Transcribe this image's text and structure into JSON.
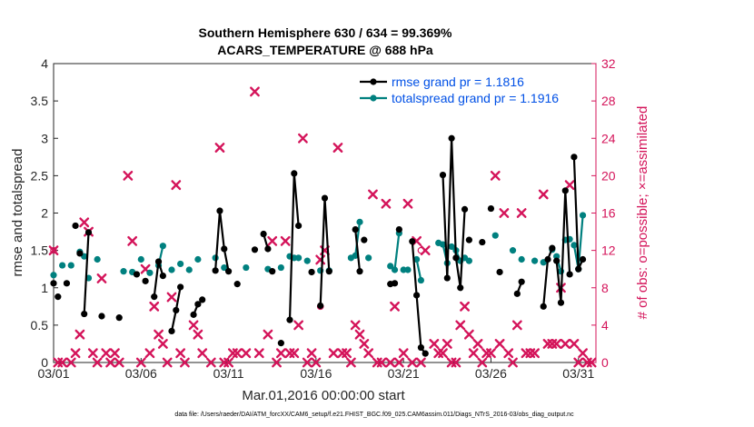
{
  "chart_data": {
    "type": "line",
    "title": "Southern Hemisphere 630 / 634 = 99.369%",
    "subtitle": "ACARS_TEMPERATURE @ 688 hPa",
    "xlabel": "Mar.01,2016 00:00:00 start",
    "ylabel": "rmse and totalspread",
    "ylabel_right": "# of obs: o=possible; ×=assimilated",
    "footer": "data file: /Users/raeder/DAI/ATM_forcXX/CAM6_setup/f.e21.FHIST_BGC.f09_025.CAM6assim.011/Diags_NTrS_2016-03/obs_diag_output.nc",
    "xlim": [
      1,
      32
    ],
    "ylim": [
      0,
      4
    ],
    "ylim_right": [
      0,
      32
    ],
    "x_ticks": [
      {
        "value": 1,
        "label": "03/01"
      },
      {
        "value": 6,
        "label": "03/06"
      },
      {
        "value": 11,
        "label": "03/11"
      },
      {
        "value": 16,
        "label": "03/16"
      },
      {
        "value": 21,
        "label": "03/21"
      },
      {
        "value": 26,
        "label": "03/26"
      },
      {
        "value": 31,
        "label": "03/31"
      }
    ],
    "y_ticks": [
      "0",
      "0.5",
      "1",
      "1.5",
      "2",
      "2.5",
      "3",
      "3.5",
      "4"
    ],
    "y_ticks_right": [
      "0",
      "4",
      "8",
      "12",
      "16",
      "20",
      "24",
      "28",
      "32"
    ],
    "legend": [
      {
        "label": "rmse grand pr = 1.1816",
        "color": "#000000",
        "marker": "dot"
      },
      {
        "label": "totalspread grand pr = 1.1916",
        "color": "#00807f",
        "marker": "dot"
      }
    ],
    "colors": {
      "rmse": "#000000",
      "spread": "#00807f",
      "obs": "#d4145a"
    },
    "series": [
      {
        "name": "rmse",
        "segments": [
          [
            [
              1.0,
              1.06
            ]
          ],
          [
            [
              1.25,
              0.88
            ]
          ],
          [
            [
              1.75,
              1.06
            ]
          ],
          [
            [
              2.25,
              1.83
            ]
          ],
          [
            [
              2.5,
              1.46
            ]
          ],
          [
            [
              2.75,
              0.65
            ],
            [
              3.0,
              1.74
            ]
          ],
          [
            [
              3.75,
              0.62
            ]
          ],
          [
            [
              4.75,
              0.6
            ]
          ],
          [
            [
              5.75,
              1.18
            ]
          ],
          [
            [
              6.25,
              1.09
            ]
          ],
          [
            [
              6.75,
              0.88
            ],
            [
              7.0,
              1.35
            ],
            [
              7.25,
              1.16
            ]
          ],
          [
            [
              7.75,
              0.42
            ],
            [
              8.0,
              0.7
            ],
            [
              8.25,
              1.01
            ]
          ],
          [
            [
              9.0,
              0.64
            ],
            [
              9.25,
              0.78
            ]
          ],
          [
            [
              9.5,
              0.84
            ]
          ],
          [
            [
              10.25,
              1.23
            ],
            [
              10.5,
              2.03
            ],
            [
              10.75,
              1.52
            ],
            [
              11.0,
              1.22
            ]
          ],
          [
            [
              11.5,
              1.05
            ]
          ],
          [
            [
              12.5,
              1.51
            ]
          ],
          [
            [
              13.0,
              1.72
            ],
            [
              13.25,
              1.52
            ]
          ],
          [
            [
              13.5,
              1.22
            ]
          ],
          [
            [
              14.0,
              0.26
            ]
          ],
          [
            [
              14.5,
              0.57
            ],
            [
              14.75,
              2.53
            ],
            [
              15.0,
              1.83
            ]
          ],
          [
            [
              15.75,
              1.21
            ]
          ],
          [
            [
              16.25,
              0.76
            ],
            [
              16.5,
              2.2
            ],
            [
              16.75,
              1.22
            ]
          ],
          [
            [
              18.25,
              1.78
            ],
            [
              18.5,
              1.22
            ]
          ],
          [
            [
              18.75,
              1.64
            ]
          ],
          [
            [
              20.25,
              1.05
            ],
            [
              20.5,
              1.06
            ]
          ],
          [
            [
              20.75,
              1.78
            ]
          ],
          [
            [
              21.5,
              1.62
            ],
            [
              21.75,
              0.9
            ],
            [
              22.0,
              0.2
            ],
            [
              22.25,
              0.12
            ]
          ],
          [
            [
              23.25,
              2.51
            ],
            [
              23.5,
              1.13
            ],
            [
              23.75,
              3.0
            ],
            [
              24.0,
              1.4
            ],
            [
              24.25,
              1.0
            ],
            [
              24.5,
              2.05
            ]
          ],
          [
            [
              24.75,
              1.64
            ]
          ],
          [
            [
              25.5,
              1.61
            ]
          ],
          [
            [
              26.0,
              2.06
            ]
          ],
          [
            [
              26.5,
              1.21
            ]
          ],
          [
            [
              27.5,
              0.92
            ],
            [
              27.75,
              1.08
            ]
          ],
          [
            [
              29.0,
              0.75
            ],
            [
              29.25,
              1.38
            ],
            [
              29.5,
              1.53
            ]
          ],
          [
            [
              29.75,
              1.36
            ],
            [
              30.0,
              0.8
            ],
            [
              30.25,
              2.3
            ],
            [
              30.5,
              1.18
            ]
          ],
          [
            [
              30.75,
              2.75
            ],
            [
              31.0,
              1.25
            ],
            [
              31.25,
              1.38
            ]
          ]
        ]
      },
      {
        "name": "totalspread",
        "segments": [
          [
            [
              1.0,
              1.17
            ]
          ],
          [
            [
              1.5,
              1.3
            ]
          ],
          [
            [
              2.0,
              1.3
            ]
          ],
          [
            [
              2.5,
              1.48
            ]
          ],
          [
            [
              2.75,
              1.42
            ]
          ],
          [
            [
              3.0,
              1.13
            ]
          ],
          [
            [
              3.5,
              1.38
            ]
          ],
          [
            [
              5.0,
              1.22
            ]
          ],
          [
            [
              5.5,
              1.21
            ]
          ],
          [
            [
              6.0,
              1.38
            ]
          ],
          [
            [
              6.5,
              1.2
            ]
          ],
          [
            [
              7.0,
              1.3
            ],
            [
              7.25,
              1.56
            ]
          ],
          [
            [
              7.75,
              1.24
            ]
          ],
          [
            [
              8.25,
              1.32
            ]
          ],
          [
            [
              8.75,
              1.24
            ]
          ],
          [
            [
              9.25,
              1.38
            ]
          ],
          [
            [
              10.25,
              1.4
            ]
          ],
          [
            [
              10.75,
              1.27
            ]
          ],
          [
            [
              12.0,
              1.27
            ]
          ],
          [
            [
              13.25,
              1.25
            ]
          ],
          [
            [
              14.0,
              1.27
            ]
          ],
          [
            [
              14.5,
              1.42
            ],
            [
              14.75,
              1.4
            ],
            [
              15.0,
              1.4
            ]
          ],
          [
            [
              15.5,
              1.36
            ]
          ],
          [
            [
              16.25,
              1.23
            ]
          ],
          [
            [
              16.75,
              1.23
            ]
          ],
          [
            [
              18.0,
              1.4
            ]
          ],
          [
            [
              18.25,
              1.43
            ],
            [
              18.5,
              1.88
            ]
          ],
          [
            [
              19.0,
              1.4
            ]
          ],
          [
            [
              20.25,
              1.29
            ]
          ],
          [
            [
              20.5,
              1.24
            ],
            [
              20.75,
              1.73
            ]
          ],
          [
            [
              21.0,
              1.24
            ],
            [
              21.25,
              1.24
            ]
          ],
          [
            [
              21.75,
              1.38
            ],
            [
              22.0,
              1.1
            ]
          ],
          [
            [
              23.0,
              1.6
            ]
          ],
          [
            [
              23.25,
              1.58
            ],
            [
              23.5,
              1.33
            ]
          ],
          [
            [
              23.75,
              1.55
            ],
            [
              24.0,
              1.5
            ],
            [
              24.25,
              1.36
            ]
          ],
          [
            [
              24.5,
              1.4
            ],
            [
              24.75,
              1.36
            ]
          ],
          [
            [
              26.25,
              1.7
            ]
          ],
          [
            [
              27.25,
              1.5
            ]
          ],
          [
            [
              27.75,
              1.38
            ]
          ],
          [
            [
              28.5,
              1.36
            ]
          ],
          [
            [
              29.0,
              1.34
            ]
          ],
          [
            [
              29.5,
              1.51
            ]
          ],
          [
            [
              29.75,
              1.42
            ],
            [
              30.0,
              1.22
            ]
          ],
          [
            [
              30.25,
              1.64
            ]
          ],
          [
            [
              30.5,
              1.65
            ]
          ],
          [
            [
              30.75,
              1.57
            ],
            [
              31.0,
              1.25
            ],
            [
              31.25,
              1.97
            ]
          ]
        ]
      },
      {
        "name": "obs_possible",
        "axis": "right",
        "marker": "circle",
        "values": [
          [
            1.0,
            12
          ],
          [
            16.25,
            6
          ],
          [
            22.0,
            12
          ]
        ]
      },
      {
        "name": "obs_assimilated",
        "axis": "right",
        "marker": "x",
        "values": [
          [
            1.0,
            12
          ],
          [
            1.25,
            0
          ],
          [
            1.5,
            0
          ],
          [
            2.0,
            0
          ],
          [
            2.25,
            1
          ],
          [
            2.75,
            15
          ],
          [
            3.0,
            14
          ],
          [
            2.5,
            3
          ],
          [
            3.25,
            1
          ],
          [
            3.5,
            0
          ],
          [
            3.75,
            9
          ],
          [
            4.0,
            1
          ],
          [
            4.25,
            0
          ],
          [
            4.5,
            1
          ],
          [
            4.75,
            0
          ],
          [
            5.25,
            20
          ],
          [
            5.5,
            13
          ],
          [
            6.0,
            0
          ],
          [
            6.25,
            10
          ],
          [
            6.5,
            1
          ],
          [
            6.75,
            6
          ],
          [
            7.0,
            3
          ],
          [
            7.25,
            2
          ],
          [
            7.5,
            0
          ],
          [
            7.75,
            7
          ],
          [
            8.0,
            19
          ],
          [
            8.25,
            1
          ],
          [
            8.5,
            0
          ],
          [
            9.0,
            4
          ],
          [
            9.25,
            3
          ],
          [
            9.5,
            1
          ],
          [
            10.0,
            0
          ],
          [
            10.5,
            23
          ],
          [
            10.75,
            0
          ],
          [
            11.0,
            0
          ],
          [
            11.25,
            1
          ],
          [
            11.5,
            1
          ],
          [
            12.0,
            1
          ],
          [
            12.5,
            29
          ],
          [
            12.75,
            1
          ],
          [
            13.25,
            3
          ],
          [
            13.5,
            13
          ],
          [
            13.75,
            0
          ],
          [
            14.0,
            1
          ],
          [
            14.25,
            13
          ],
          [
            14.5,
            1
          ],
          [
            14.75,
            1
          ],
          [
            15.0,
            4
          ],
          [
            15.25,
            24
          ],
          [
            15.5,
            0
          ],
          [
            15.75,
            1
          ],
          [
            16.0,
            0
          ],
          [
            16.25,
            11
          ],
          [
            16.5,
            12
          ],
          [
            17.0,
            1
          ],
          [
            17.25,
            23
          ],
          [
            17.5,
            1
          ],
          [
            17.75,
            1
          ],
          [
            18.0,
            0
          ],
          [
            18.25,
            4
          ],
          [
            18.5,
            3
          ],
          [
            18.75,
            2
          ],
          [
            19.0,
            1
          ],
          [
            19.25,
            18
          ],
          [
            19.5,
            0
          ],
          [
            19.75,
            0
          ],
          [
            20.0,
            17
          ],
          [
            20.25,
            0
          ],
          [
            20.5,
            6
          ],
          [
            20.75,
            0
          ],
          [
            21.0,
            1
          ],
          [
            21.25,
            17
          ],
          [
            21.5,
            0
          ],
          [
            21.75,
            13
          ],
          [
            22.0,
            0
          ],
          [
            22.25,
            12
          ],
          [
            22.75,
            2
          ],
          [
            23.0,
            1
          ],
          [
            23.25,
            1
          ],
          [
            23.5,
            2
          ],
          [
            23.75,
            0
          ],
          [
            24.0,
            0
          ],
          [
            24.25,
            4
          ],
          [
            24.5,
            6
          ],
          [
            24.75,
            3
          ],
          [
            25.0,
            1
          ],
          [
            25.25,
            2
          ],
          [
            25.5,
            0
          ],
          [
            25.75,
            1
          ],
          [
            26.0,
            1
          ],
          [
            26.25,
            20
          ],
          [
            26.5,
            2
          ],
          [
            26.75,
            16
          ],
          [
            27.0,
            1
          ],
          [
            27.25,
            0
          ],
          [
            27.5,
            4
          ],
          [
            27.75,
            16
          ],
          [
            28.0,
            1
          ],
          [
            28.25,
            1
          ],
          [
            28.5,
            1
          ],
          [
            29.0,
            18
          ],
          [
            29.25,
            2
          ],
          [
            29.5,
            2
          ],
          [
            29.75,
            2
          ],
          [
            30.0,
            8
          ],
          [
            30.25,
            2
          ],
          [
            30.5,
            19
          ],
          [
            30.75,
            2
          ],
          [
            31.0,
            0
          ],
          [
            31.25,
            1
          ],
          [
            31.5,
            0
          ],
          [
            31.75,
            0
          ]
        ]
      }
    ]
  }
}
